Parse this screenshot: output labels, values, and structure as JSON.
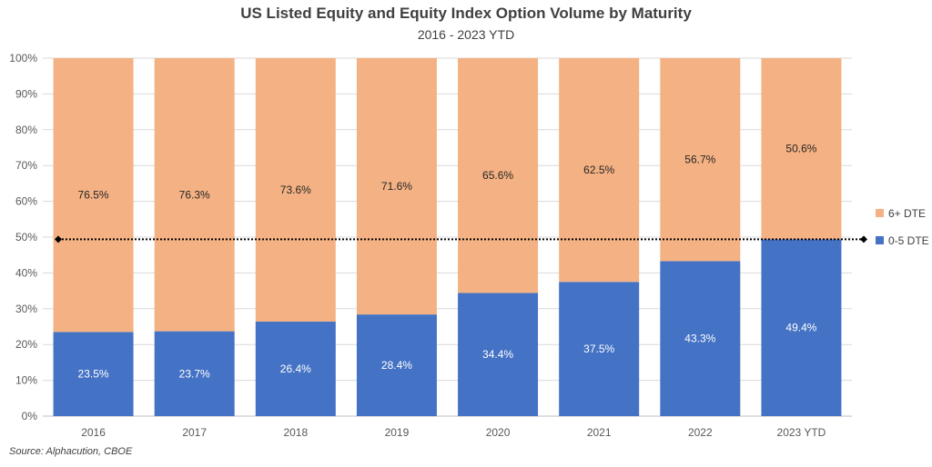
{
  "title": "US Listed Equity and Equity Index Option Volume by Maturity",
  "subtitle": "2016 - 2023 YTD",
  "source": "Source: Alphacution, CBOE",
  "chart_data": {
    "type": "bar",
    "stacked": true,
    "title": "US Listed Equity and Equity Index Option Volume by Maturity",
    "subtitle": "2016 - 2023 YTD",
    "categories": [
      "2016",
      "2017",
      "2018",
      "2019",
      "2020",
      "2021",
      "2022",
      "2023 YTD"
    ],
    "series": [
      {
        "name": "0-5 DTE",
        "color": "#4472C4",
        "label_color": "#FFFFFF",
        "values": [
          23.5,
          23.7,
          26.4,
          28.4,
          34.4,
          37.5,
          43.3,
          49.4
        ],
        "labels": [
          "23.5%",
          "23.7%",
          "26.4%",
          "28.4%",
          "34.4%",
          "37.5%",
          "43.3%",
          "49.4%"
        ]
      },
      {
        "name": "6+ DTE",
        "color": "#F4B183",
        "label_color": "#262626",
        "values": [
          76.5,
          76.3,
          73.6,
          71.6,
          65.6,
          62.5,
          56.7,
          50.6
        ],
        "labels": [
          "76.5%",
          "76.3%",
          "73.6%",
          "71.6%",
          "65.6%",
          "62.5%",
          "56.7%",
          "50.6%"
        ]
      }
    ],
    "y_ticks": [
      "0%",
      "10%",
      "20%",
      "30%",
      "40%",
      "50%",
      "60%",
      "70%",
      "80%",
      "90%",
      "100%"
    ],
    "ylim": [
      0,
      100
    ],
    "reference_line": {
      "value": 49.4,
      "style": "dotted",
      "color": "#000000"
    },
    "legend": {
      "position": "right",
      "order": [
        "6+ DTE",
        "0-5 DTE"
      ]
    },
    "grid": true
  }
}
